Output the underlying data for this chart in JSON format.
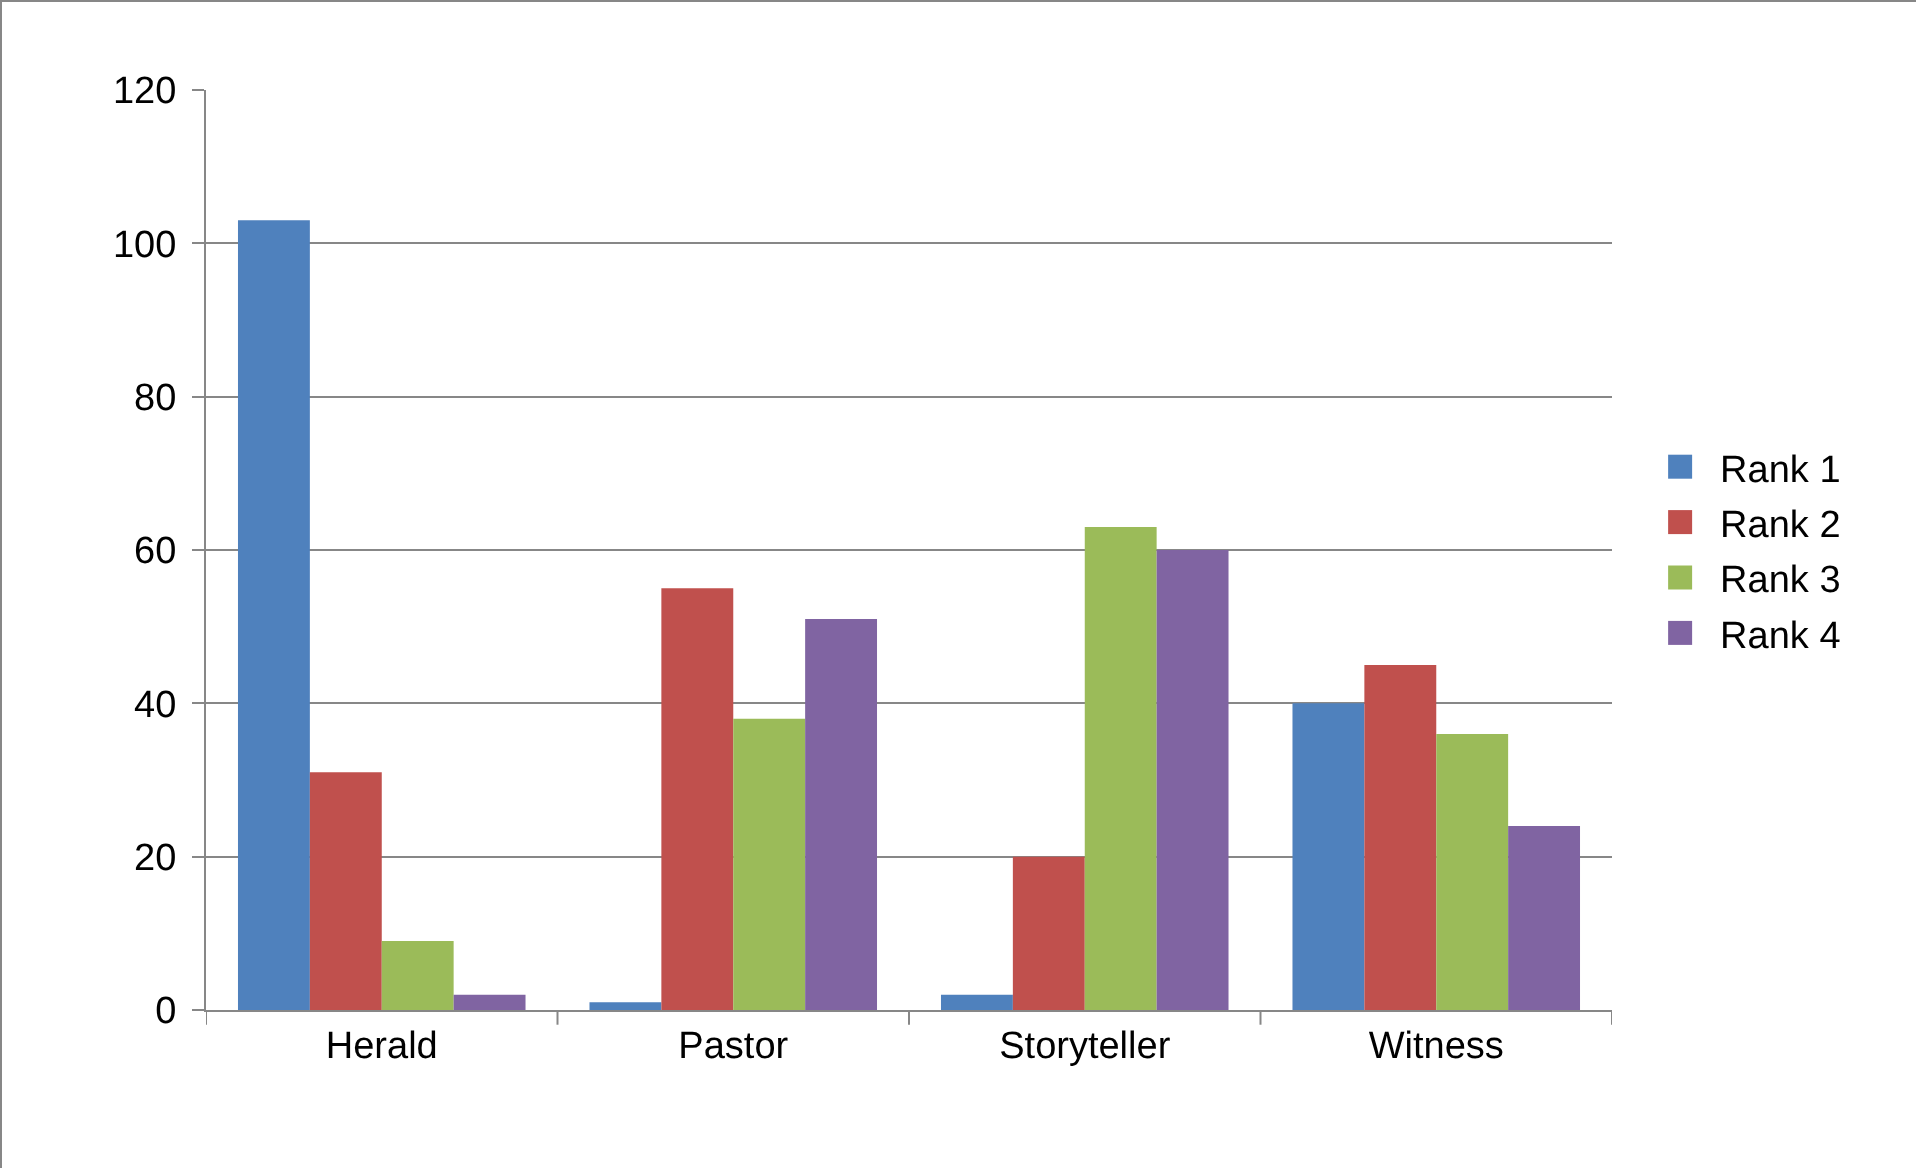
{
  "chart_data": {
    "type": "bar",
    "categories": [
      "Herald",
      "Pastor",
      "Storyteller",
      "Witness"
    ],
    "series": [
      {
        "name": "Rank 1",
        "color": "#4f81bd",
        "values": [
          103,
          1,
          2,
          40
        ]
      },
      {
        "name": "Rank 2",
        "color": "#c0504d",
        "values": [
          31,
          55,
          20,
          45
        ]
      },
      {
        "name": "Rank 3",
        "color": "#9bbb59",
        "values": [
          9,
          38,
          63,
          36
        ]
      },
      {
        "name": "Rank 4",
        "color": "#8064a2",
        "values": [
          2,
          51,
          60,
          24
        ]
      }
    ],
    "ylim": [
      0,
      120
    ],
    "yticks": [
      0,
      20,
      40,
      60,
      80,
      100,
      120
    ],
    "grid": "y",
    "legend": "right"
  }
}
